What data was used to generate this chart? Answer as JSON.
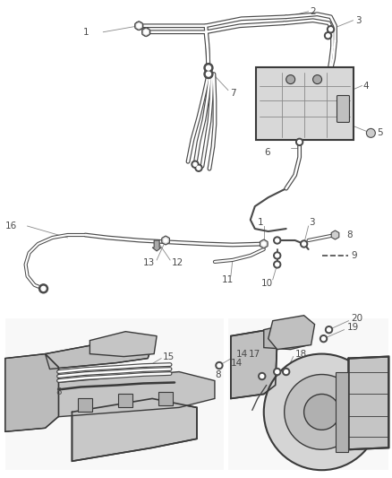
{
  "bg_color": "#ffffff",
  "line_color": "#4a4a4a",
  "label_color": "#4a4a4a",
  "leader_color": "#888888",
  "figsize": [
    4.38,
    5.33
  ],
  "dpi": 100,
  "tube_color": "#3a3a3a",
  "part_color": "#b0b0b0",
  "part_edge": "#3a3a3a"
}
